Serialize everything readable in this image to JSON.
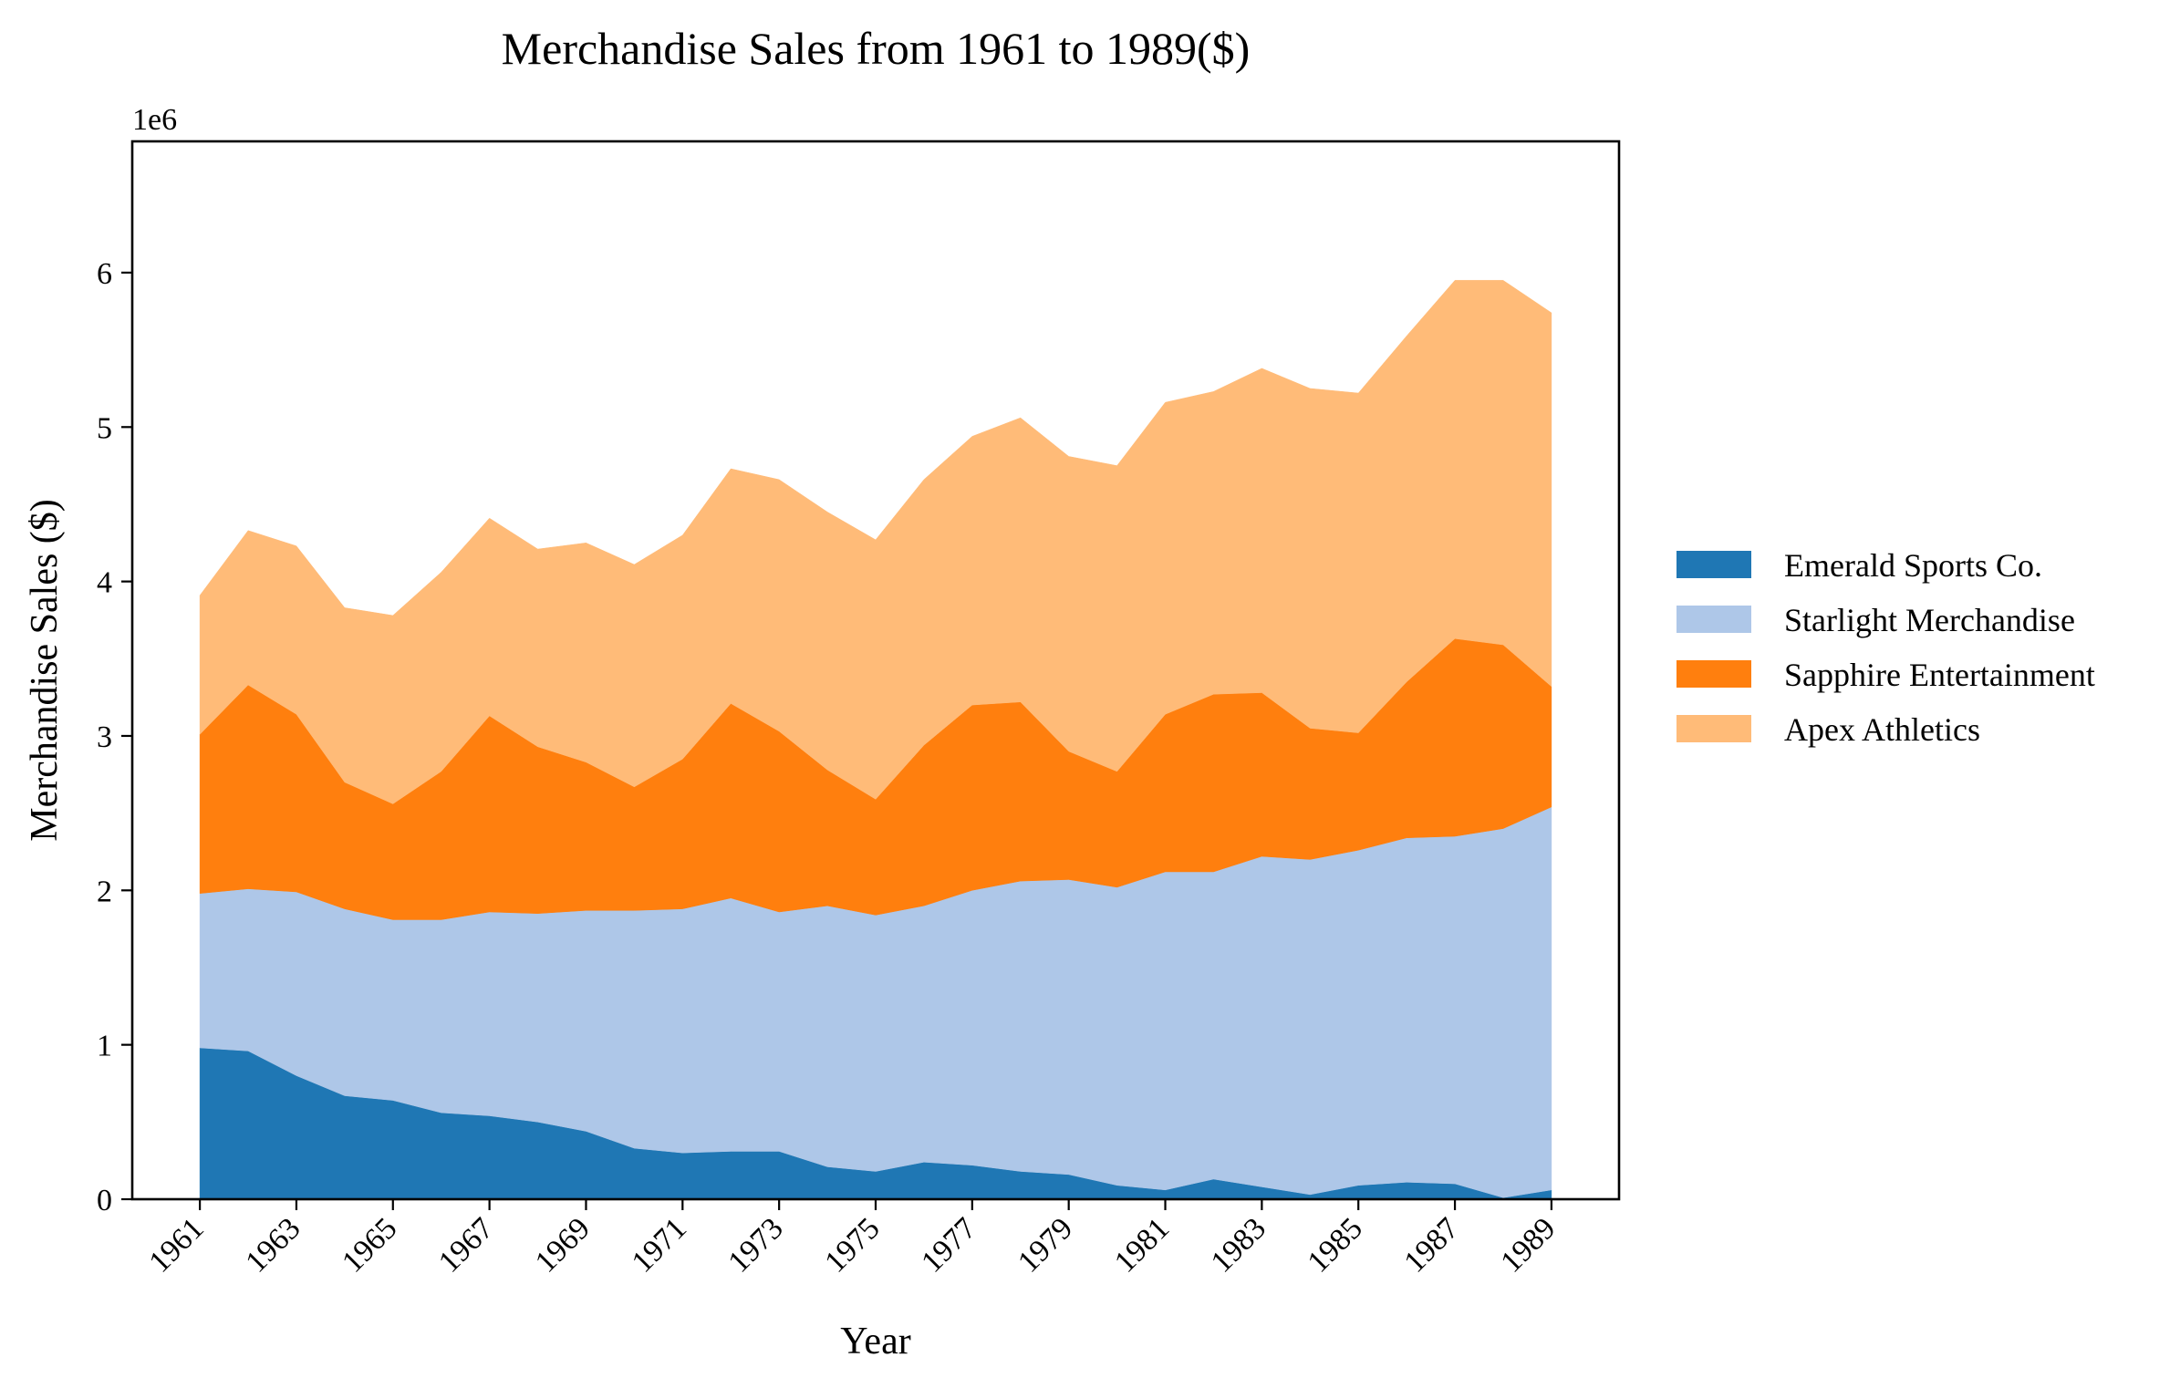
{
  "chart_data": {
    "type": "area",
    "stacked": true,
    "title": "Merchandise Sales from 1961 to 1989($)",
    "xlabel": "Year",
    "ylabel": "Merchandise Sales ($)",
    "offset_label": "1e6",
    "xlim": [
      1959.6,
      1990.4
    ],
    "ylim": [
      0,
      6.85
    ],
    "y_scale_multiplier": 1000000,
    "x": [
      1961,
      1962,
      1963,
      1964,
      1965,
      1966,
      1967,
      1968,
      1969,
      1970,
      1971,
      1972,
      1973,
      1974,
      1975,
      1976,
      1977,
      1978,
      1979,
      1980,
      1981,
      1982,
      1983,
      1984,
      1985,
      1986,
      1987,
      1988,
      1989
    ],
    "x_tick_labels": [
      "1961",
      "1963",
      "1965",
      "1967",
      "1969",
      "1971",
      "1973",
      "1975",
      "1977",
      "1979",
      "1981",
      "1983",
      "1985",
      "1987",
      "1989"
    ],
    "y_tick_labels": [
      "0",
      "1",
      "2",
      "3",
      "4",
      "5",
      "6"
    ],
    "grid": false,
    "legend_position": "right",
    "series": [
      {
        "name": "Emerald Sports Co.",
        "color": "#1f77b4",
        "values": [
          0.98,
          0.96,
          0.8,
          0.67,
          0.64,
          0.56,
          0.54,
          0.5,
          0.44,
          0.33,
          0.3,
          0.31,
          0.31,
          0.21,
          0.18,
          0.24,
          0.22,
          0.18,
          0.16,
          0.09,
          0.06,
          0.13,
          0.08,
          0.03,
          0.09,
          0.11,
          0.1,
          0.01,
          0.06
        ]
      },
      {
        "name": "Starlight Merchandise",
        "color": "#aec7e8",
        "values": [
          1.0,
          1.05,
          1.19,
          1.21,
          1.17,
          1.25,
          1.32,
          1.35,
          1.43,
          1.54,
          1.58,
          1.64,
          1.55,
          1.69,
          1.66,
          1.66,
          1.78,
          1.88,
          1.91,
          1.93,
          2.06,
          1.99,
          2.14,
          2.17,
          2.17,
          2.23,
          2.25,
          2.39,
          2.48
        ]
      },
      {
        "name": "Sapphire Entertainment",
        "color": "#ff7f0e",
        "values": [
          1.03,
          1.32,
          1.15,
          0.82,
          0.75,
          0.96,
          1.27,
          1.08,
          0.96,
          0.8,
          0.97,
          1.26,
          1.17,
          0.88,
          0.75,
          1.04,
          1.2,
          1.16,
          0.83,
          0.75,
          1.02,
          1.15,
          1.06,
          0.85,
          0.76,
          1.01,
          1.28,
          1.19,
          0.78
        ]
      },
      {
        "name": "Apex Athletics",
        "color": "#ffbb78",
        "values": [
          0.9,
          1.0,
          1.09,
          1.13,
          1.22,
          1.29,
          1.28,
          1.28,
          1.42,
          1.44,
          1.45,
          1.52,
          1.63,
          1.67,
          1.68,
          1.72,
          1.74,
          1.84,
          1.91,
          1.98,
          2.02,
          1.96,
          2.1,
          2.2,
          2.2,
          2.24,
          2.32,
          2.36,
          2.42
        ]
      }
    ]
  }
}
